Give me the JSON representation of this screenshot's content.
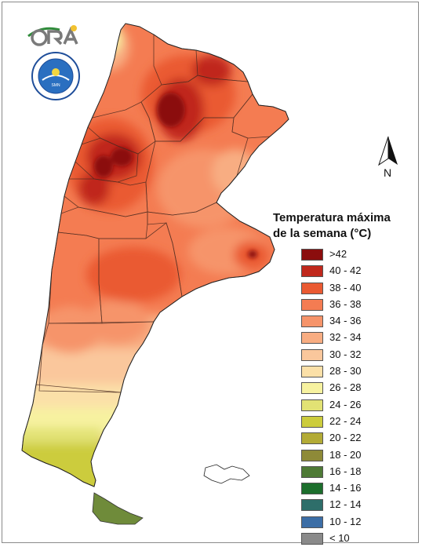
{
  "map": {
    "legend_title_line1": "Temperatura máxima",
    "legend_title_line2": "de la semana (°C)",
    "north_label": "N",
    "logo_ora_text": "ORA",
    "logo_smn_text": "SERVICIO METEOROLOGICO NACIONAL · ARGENTINA",
    "legend": [
      {
        "label": ">42",
        "color": "#8b0d0d"
      },
      {
        "label": "40 - 42",
        "color": "#c0281c"
      },
      {
        "label": "38 - 40",
        "color": "#ea5a32"
      },
      {
        "label": "36 - 38",
        "color": "#f47c52"
      },
      {
        "label": "34 - 36",
        "color": "#f6946a"
      },
      {
        "label": "32 - 34",
        "color": "#f8ad82"
      },
      {
        "label": "30 - 32",
        "color": "#fac79c"
      },
      {
        "label": "28 - 30",
        "color": "#fbe0a8"
      },
      {
        "label": "26 - 28",
        "color": "#f7f2a0"
      },
      {
        "label": "24 - 26",
        "color": "#e2e274"
      },
      {
        "label": "22 - 24",
        "color": "#cccc3c"
      },
      {
        "label": "20 - 22",
        "color": "#b3ab36"
      },
      {
        "label": "18 - 20",
        "color": "#8e8a38"
      },
      {
        "label": "16 - 18",
        "color": "#4e7a36"
      },
      {
        "label": "14 - 16",
        "color": "#1c6e2c"
      },
      {
        "label": "12 - 14",
        "color": "#2e6e6a"
      },
      {
        "label": "10 - 12",
        "color": "#3c6ea6"
      },
      {
        "label": "< 10",
        "color": "#8a8a8a"
      }
    ]
  }
}
